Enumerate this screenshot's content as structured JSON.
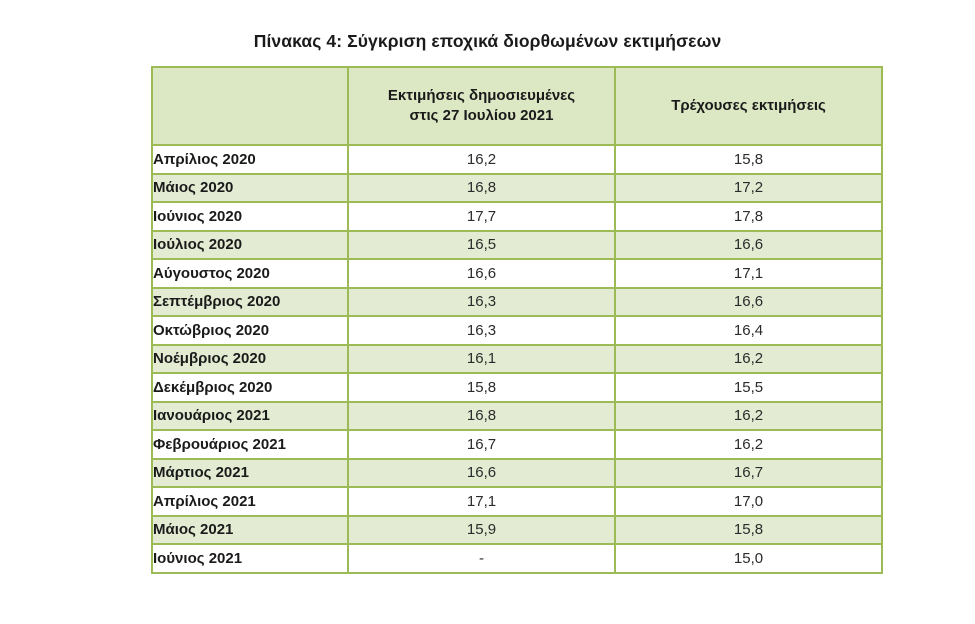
{
  "page": {
    "title": "Πίνακας 4: Σύγκριση εποχικά διορθωμένων εκτιμήσεων"
  },
  "table": {
    "headers": {
      "month": "",
      "published": "Εκτιμήσεις δημοσιευμένες στις 27 Ιουλίου 2021",
      "current": "Τρέχουσες εκτιμήσεις"
    },
    "rows": [
      {
        "label": "Απρίλιος 2020",
        "published": "16,2",
        "current": "15,8"
      },
      {
        "label": "Μάιος 2020",
        "published": "16,8",
        "current": "17,2"
      },
      {
        "label": "Ιούνιος 2020",
        "published": "17,7",
        "current": "17,8"
      },
      {
        "label": "Ιούλιος 2020",
        "published": "16,5",
        "current": "16,6"
      },
      {
        "label": "Αύγουστος 2020",
        "published": "16,6",
        "current": "17,1"
      },
      {
        "label": "Σεπτέμβριος 2020",
        "published": "16,3",
        "current": "16,6"
      },
      {
        "label": "Οκτώβριος 2020",
        "published": "16,3",
        "current": "16,4"
      },
      {
        "label": "Νοέμβριος 2020",
        "published": "16,1",
        "current": "16,2"
      },
      {
        "label": "Δεκέμβριος 2020",
        "published": "15,8",
        "current": "15,5"
      },
      {
        "label": "Ιανουάριος 2021",
        "published": "16,8",
        "current": "16,2"
      },
      {
        "label": "Φεβρουάριος 2021",
        "published": "16,7",
        "current": "16,2"
      },
      {
        "label": "Μάρτιος 2021",
        "published": "16,6",
        "current": "16,7"
      },
      {
        "label": "Απρίλιος 2021",
        "published": "17,1",
        "current": "17,0"
      },
      {
        "label": "Μάιος 2021",
        "published": "15,9",
        "current": "15,8"
      },
      {
        "label": "Ιούνιος 2021",
        "published": "-",
        "current": "15,0"
      }
    ]
  },
  "colors": {
    "table_border": "#9cba55",
    "header_bg": "#dce8c4",
    "row_alt_bg": "#e3ecd3",
    "title_text": "#1a1a1a",
    "value_text": "#2b2b2b"
  }
}
